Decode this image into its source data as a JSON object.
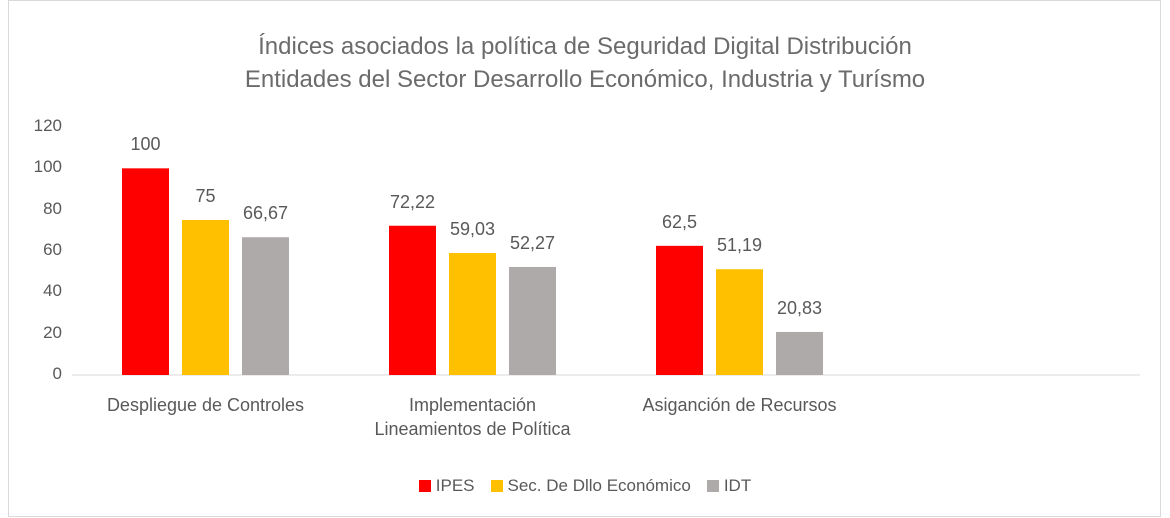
{
  "chart_data": {
    "type": "bar",
    "title": "Índices asociados la política de Seguridad Digital Distribución\nEntidades del Sector Desarrollo Económico, Industria y Turísmo",
    "categories": [
      "Despliegue de Controles",
      "Implementación\nLineamientos de Política",
      "Asiganción de Recursos",
      null
    ],
    "series": [
      {
        "name": "IPES",
        "color": "#ff0000",
        "values": [
          100,
          72.22,
          62.5,
          null
        ],
        "value_labels": [
          "100",
          "72,22",
          "62,5",
          null
        ]
      },
      {
        "name": "Sec. De Dllo Económico",
        "color": "#ffc000",
        "values": [
          75,
          59.03,
          51.19,
          null
        ],
        "value_labels": [
          "75",
          "59,03",
          "51,19",
          null
        ]
      },
      {
        "name": "IDT",
        "color": "#aeaaaa",
        "values": [
          66.67,
          52.27,
          20.83,
          null
        ],
        "value_labels": [
          "66,67",
          "52,27",
          "20,83",
          null
        ]
      }
    ],
    "ylim": [
      0,
      120
    ],
    "yticks": [
      0,
      20,
      40,
      60,
      80,
      100,
      120
    ],
    "grid": false,
    "legend": "bottom"
  }
}
